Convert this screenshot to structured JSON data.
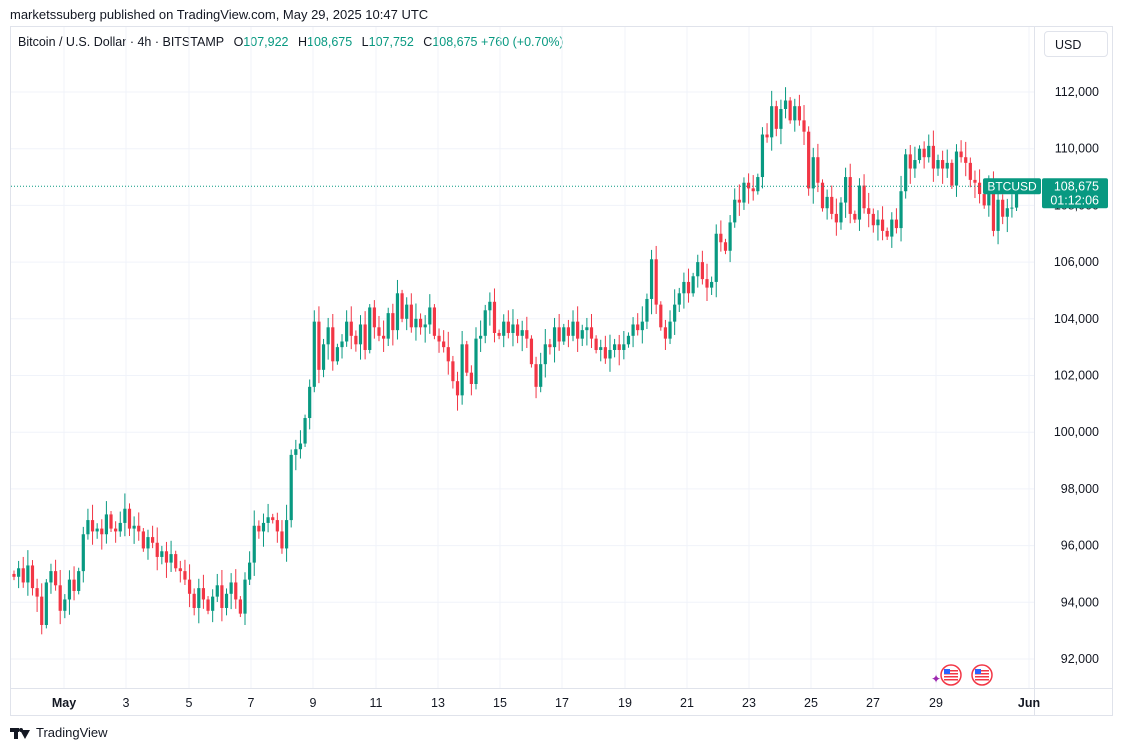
{
  "header": {
    "publish_text": "marketssuberg published on TradingView.com, May 29, 2025 10:47 UTC"
  },
  "legend": {
    "symbol": "Bitcoin / U.S. Dollar · 4h · BITSTAMP",
    "open_label": "O",
    "open": "107,922",
    "high_label": "H",
    "high": "108,675",
    "low_label": "L",
    "low": "107,752",
    "close_label": "C",
    "close": "108,675",
    "change": "+760 (+0.70%)"
  },
  "currency_button": "USD",
  "footer": {
    "brand": "TradingView"
  },
  "colors": {
    "up": "#089981",
    "down": "#f23645",
    "grid": "#f0f3fa",
    "axis_text": "#131722",
    "price_line": "#089981"
  },
  "chart_data": {
    "type": "candlestick",
    "interval": "4h",
    "x_ticks": [
      "May",
      "3",
      "5",
      "7",
      "9",
      "11",
      "13",
      "15",
      "17",
      "19",
      "21",
      "23",
      "25",
      "27",
      "29",
      "Jun"
    ],
    "y_ticks": [
      "92,000",
      "94,000",
      "96,000",
      "98,000",
      "100,000",
      "102,000",
      "104,000",
      "106,000",
      "108,000",
      "110,000",
      "112,000"
    ],
    "ylim": [
      91000,
      113000
    ],
    "last_price": {
      "symbol": "BTCUSD",
      "price": "108,675",
      "countdown": "01:12:06",
      "value": 108675
    },
    "event_markers": [
      "us-flag-icon",
      "us-flag-icon"
    ],
    "closes": [
      94900,
      95200,
      94700,
      95300,
      94500,
      94200,
      93200,
      94700,
      95100,
      94600,
      93700,
      94100,
      94800,
      94400,
      95100,
      96400,
      96900,
      96500,
      96600,
      96400,
      97100,
      96600,
      96500,
      96800,
      97300,
      96600,
      96700,
      96500,
      95900,
      96300,
      96100,
      95600,
      95800,
      95400,
      95700,
      95200,
      95100,
      94800,
      94300,
      93800,
      94500,
      94100,
      93700,
      94200,
      94600,
      93800,
      94300,
      94700,
      94100,
      93600,
      94800,
      95400,
      96700,
      96500,
      96800,
      97000,
      96900,
      96500,
      95900,
      96900,
      99200,
      99400,
      99600,
      100500,
      101600,
      103900,
      102200,
      103100,
      103700,
      102500,
      103000,
      103200,
      103900,
      103400,
      103100,
      103800,
      102900,
      104400,
      103700,
      103400,
      103300,
      104200,
      103600,
      104900,
      104000,
      104500,
      103700,
      104000,
      103700,
      103800,
      104400,
      103400,
      103200,
      103000,
      102500,
      101800,
      101300,
      103100,
      102100,
      101700,
      103300,
      103400,
      104300,
      104600,
      103500,
      103400,
      103900,
      103500,
      103800,
      103400,
      103600,
      103300,
      102400,
      101600,
      102400,
      103100,
      103000,
      103700,
      103200,
      103700,
      103400,
      103900,
      103300,
      103600,
      103700,
      103300,
      102900,
      103000,
      102600,
      102900,
      103100,
      102900,
      103100,
      103400,
      103800,
      103600,
      103900,
      104700,
      106100,
      104500,
      103700,
      103300,
      103900,
      104500,
      104900,
      105300,
      104900,
      105500,
      106000,
      105400,
      105100,
      105300,
      107000,
      106700,
      106400,
      107400,
      108200,
      108100,
      108800,
      108600,
      108500,
      109000,
      110500,
      110400,
      111500,
      110700,
      111400,
      111700,
      111000,
      111500,
      111000,
      110600,
      108600,
      109700,
      108800,
      107900,
      108300,
      107700,
      107400,
      108100,
      109000,
      107700,
      107500,
      108700,
      107900,
      107700,
      107300,
      107500,
      107100,
      106900,
      107500,
      107200,
      108500,
      109800,
      109300,
      109600,
      110000,
      109700,
      110100,
      109300,
      109600,
      109300,
      109500,
      108700,
      109900,
      109700,
      109500,
      108900,
      108800,
      108400,
      108000,
      108800,
      107100,
      108200,
      107600,
      107900,
      107922,
      108675
    ]
  }
}
